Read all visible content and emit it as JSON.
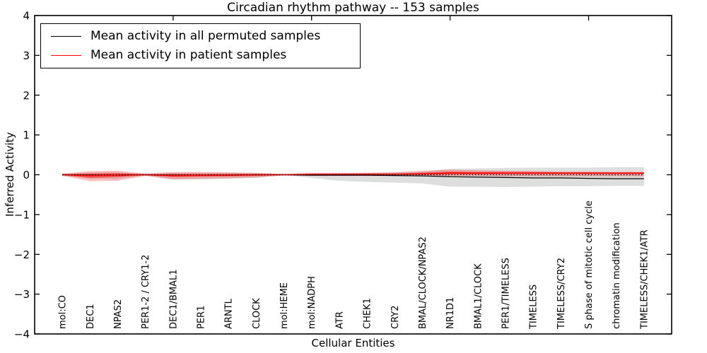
{
  "chart_data": {
    "type": "line",
    "title": "Circadian rhythm pathway -- 153 samples",
    "xlabel": "Cellular Entities",
    "ylabel": "Inferred Activity",
    "ylim": [
      -4,
      4
    ],
    "xlim": [
      0,
      23
    ],
    "yticks": [
      -4,
      -3,
      -2,
      -1,
      0,
      1,
      2,
      3,
      4
    ],
    "top_axis_tick_values": [
      5,
      10,
      15,
      20
    ],
    "grid": false,
    "legend_position": "upper left",
    "background_color": "#ffffff",
    "categories": [
      "mol:CO",
      "DEC1",
      "NPAS2",
      "PER1-2 / CRY1-2",
      "DEC1/BMAL1",
      "PER1",
      "ARNTL",
      "CLOCK",
      "mol:HEME",
      "mol:NADPH",
      "ATR",
      "CHEK1",
      "CRY2",
      "BMAL/CLOCK/NPAS2",
      "NR1D1",
      "BMAL1/CLOCK",
      "PER1/TIMELESS",
      "TIMELESS",
      "TIMELESS/CRY2",
      "S phase of mitotic cell cycle",
      "chromatin modification",
      "TIMELESS/CHEK1/ATR"
    ],
    "series": [
      {
        "name": "Mean activity in all permuted samples",
        "color": "#000000",
        "width": 1.2,
        "values": [
          0,
          -0.01,
          -0.01,
          0,
          -0.01,
          -0.01,
          -0.01,
          0,
          0,
          -0.01,
          -0.01,
          -0.01,
          -0.02,
          -0.03,
          -0.05,
          -0.06,
          -0.07,
          -0.08,
          -0.08,
          -0.09,
          -0.1,
          -0.1
        ]
      },
      {
        "name": "Mean activity in patient samples",
        "color": "#ff0000",
        "width": 1.5,
        "values": [
          0,
          -0.02,
          -0.01,
          0,
          -0.02,
          -0.01,
          -0.01,
          0,
          0,
          0.01,
          0.01,
          0.01,
          0.01,
          0.02,
          0.04,
          0.04,
          0.04,
          0.04,
          0.04,
          0.04,
          0.04,
          0.04
        ]
      }
    ],
    "bands": [
      {
        "name": "permuted-spread",
        "color": "#888888",
        "opacity": 0.28,
        "upper": [
          0.02,
          0.06,
          0.06,
          0.02,
          0.05,
          0.05,
          0.05,
          0.04,
          0.01,
          0.03,
          0.04,
          0.05,
          0.06,
          0.08,
          0.15,
          0.16,
          0.17,
          0.18,
          0.18,
          0.18,
          0.19,
          0.19
        ],
        "lower": [
          -0.02,
          -0.1,
          -0.1,
          -0.02,
          -0.12,
          -0.12,
          -0.1,
          -0.08,
          -0.01,
          -0.08,
          -0.15,
          -0.18,
          -0.2,
          -0.22,
          -0.3,
          -0.3,
          -0.31,
          -0.3,
          -0.29,
          -0.29,
          -0.28,
          -0.28
        ]
      },
      {
        "name": "patient-spread-outer",
        "color": "#ff0000",
        "opacity": 0.25,
        "upper": [
          0.03,
          0.09,
          0.1,
          0.03,
          0.07,
          0.07,
          0.06,
          0.05,
          0.02,
          0.05,
          0.05,
          0.05,
          0.06,
          0.1,
          0.13,
          0.11,
          0.1,
          0.09,
          0.08,
          0.08,
          0.07,
          0.07
        ],
        "lower": [
          -0.03,
          -0.16,
          -0.15,
          -0.03,
          -0.12,
          -0.1,
          -0.09,
          -0.07,
          -0.02,
          -0.03,
          -0.03,
          -0.03,
          -0.03,
          -0.04,
          -0.03,
          -0.03,
          -0.04,
          -0.04,
          -0.04,
          -0.04,
          -0.04,
          -0.04
        ]
      },
      {
        "name": "patient-spread-inner",
        "color": "#ff0000",
        "opacity": 0.5,
        "upper": [
          0.01,
          0.03,
          0.04,
          0.01,
          0.02,
          0.02,
          0.02,
          0.02,
          0.01,
          0.02,
          0.02,
          0.03,
          0.03,
          0.05,
          0.08,
          0.07,
          0.07,
          0.07,
          0.06,
          0.06,
          0.06,
          0.06
        ],
        "lower": [
          -0.01,
          -0.08,
          -0.06,
          -0.01,
          -0.06,
          -0.05,
          -0.04,
          -0.03,
          -0.01,
          0,
          0,
          0,
          0,
          0,
          0.01,
          0.01,
          0.02,
          0.02,
          0.02,
          0.02,
          0.02,
          0.02
        ]
      }
    ],
    "zero_line": {
      "value": 0,
      "style": "dotted",
      "color": "#000000"
    }
  },
  "legend": {
    "items": [
      {
        "label": "Mean activity in all permuted samples",
        "color": "#000000"
      },
      {
        "label": "Mean activity in patient samples",
        "color": "#ff0000"
      }
    ]
  }
}
